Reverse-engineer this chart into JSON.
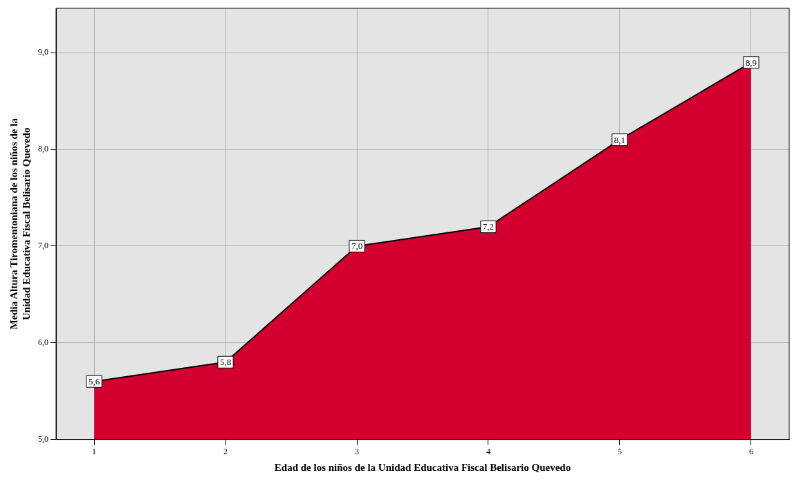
{
  "chart_data": {
    "type": "area",
    "xlabel": "Edad de los niños de la Unidad Educativa Fiscal Belisario Quevedo",
    "ylabel": "Media Altura Tiromentoniana de los niños de la Unidad Educativa Fiscal Belisario Quevedo",
    "x": [
      1,
      2,
      3,
      4,
      5,
      6
    ],
    "series": [
      {
        "color": "#d3002f",
        "values": [
          5.6,
          5.8,
          7.0,
          7.2,
          8.1,
          8.9
        ]
      }
    ],
    "xlim": [
      0.71,
      6.29
    ],
    "xticks": [
      1,
      2,
      3,
      4,
      5,
      6
    ],
    "ylim": [
      5,
      9.46
    ],
    "yticks": [
      {
        "value": 5,
        "label": "5,0"
      },
      {
        "value": 6,
        "label": "6,0"
      },
      {
        "value": 7,
        "label": "7,0"
      },
      {
        "value": 8,
        "label": "8,0"
      },
      {
        "value": 9,
        "label": "9,0"
      }
    ],
    "value_labels": [
      "5,6",
      "5,8",
      "7,0",
      "7,2",
      "8,1",
      "8,9"
    ],
    "grid": true,
    "legend": false
  }
}
